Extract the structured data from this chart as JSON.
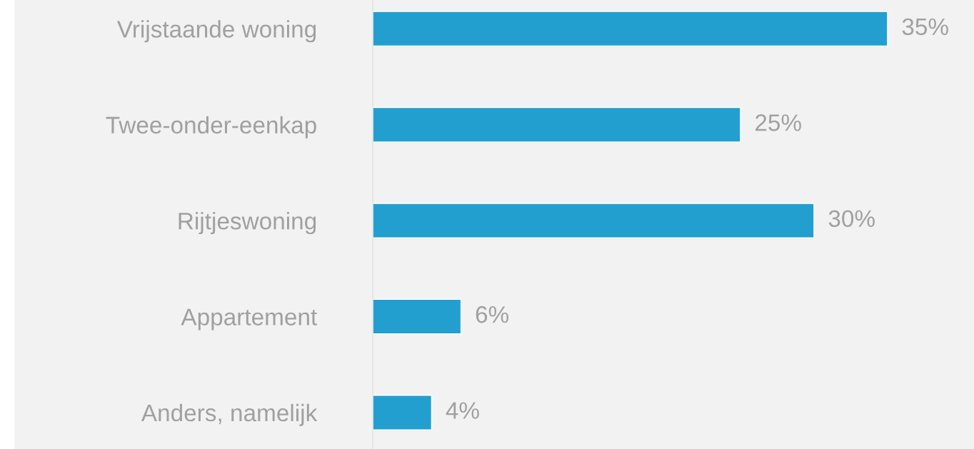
{
  "chart_data": {
    "type": "bar",
    "orientation": "horizontal",
    "categories": [
      "Vrijstaande woning",
      "Twee-onder-eenkap",
      "Rijtjeswoning",
      "Appartement",
      "Anders, namelijk"
    ],
    "values": [
      35,
      25,
      30,
      6,
      4
    ],
    "value_labels": [
      "35%",
      "25%",
      "30%",
      "6%",
      "4%"
    ],
    "color": "#239fcf"
  }
}
